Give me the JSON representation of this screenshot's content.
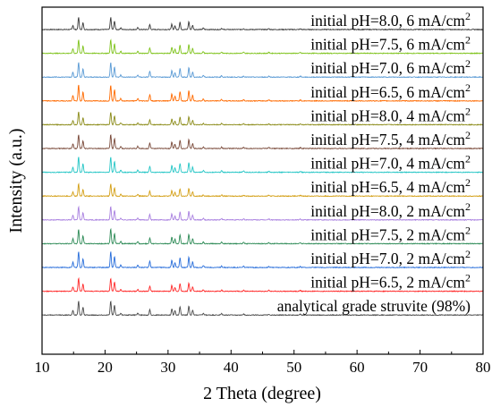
{
  "chart_data": {
    "type": "line",
    "title": "",
    "xlabel": "2 Theta (degree)",
    "ylabel": "Intensity (a.u.)",
    "xlim": [
      10,
      80
    ],
    "xticks": [
      10,
      20,
      30,
      40,
      50,
      60,
      70,
      80
    ],
    "grid": false,
    "legend": "inline labels at right of each stacked trace",
    "series": [
      {
        "name": "initial pH=8.0, 6 mA/cm",
        "sup": "2",
        "color": "#3a3a3a"
      },
      {
        "name": "initial pH=7.5, 6 mA/cm",
        "sup": "2",
        "color": "#7fc31c"
      },
      {
        "name": "initial pH=7.0, 6 mA/cm",
        "sup": "2",
        "color": "#5b9bd5"
      },
      {
        "name": "initial pH=6.5, 6 mA/cm",
        "sup": "2",
        "color": "#ff6a00"
      },
      {
        "name": "initial pH=8.0, 4 mA/cm",
        "sup": "2",
        "color": "#8c8c1a"
      },
      {
        "name": "initial pH=7.5, 4 mA/cm",
        "sup": "2",
        "color": "#7a4a3a"
      },
      {
        "name": "initial pH=7.0, 4 mA/cm",
        "sup": "2",
        "color": "#26c6c6"
      },
      {
        "name": "initial pH=6.5, 4 mA/cm",
        "sup": "2",
        "color": "#d4a017"
      },
      {
        "name": "initial pH=8.0, 2 mA/cm",
        "sup": "2",
        "color": "#a980e0"
      },
      {
        "name": "initial pH=7.5, 2 mA/cm",
        "sup": "2",
        "color": "#2e8b57"
      },
      {
        "name": "initial pH=7.0, 2 mA/cm",
        "sup": "2",
        "color": "#2a6fdb"
      },
      {
        "name": "initial pH=6.5, 2 mA/cm",
        "sup": "2",
        "color": "#ff2a2a"
      },
      {
        "name": "analytical grade struvite (98%)",
        "sup": "",
        "color": "#4a4a4a"
      }
    ],
    "peaks": [
      {
        "x": 14.9,
        "h": 0.35
      },
      {
        "x": 15.8,
        "h": 1.0
      },
      {
        "x": 16.5,
        "h": 0.55
      },
      {
        "x": 20.9,
        "h": 1.0
      },
      {
        "x": 21.5,
        "h": 0.7
      },
      {
        "x": 22.5,
        "h": 0.15
      },
      {
        "x": 25.2,
        "h": 0.15
      },
      {
        "x": 27.1,
        "h": 0.4
      },
      {
        "x": 30.6,
        "h": 0.45
      },
      {
        "x": 31.1,
        "h": 0.3
      },
      {
        "x": 31.9,
        "h": 0.6
      },
      {
        "x": 33.3,
        "h": 0.65
      },
      {
        "x": 33.9,
        "h": 0.35
      },
      {
        "x": 35.6,
        "h": 0.12
      },
      {
        "x": 38.5,
        "h": 0.1
      },
      {
        "x": 42.0,
        "h": 0.08
      },
      {
        "x": 46.0,
        "h": 0.07
      },
      {
        "x": 51.0,
        "h": 0.06
      }
    ]
  }
}
